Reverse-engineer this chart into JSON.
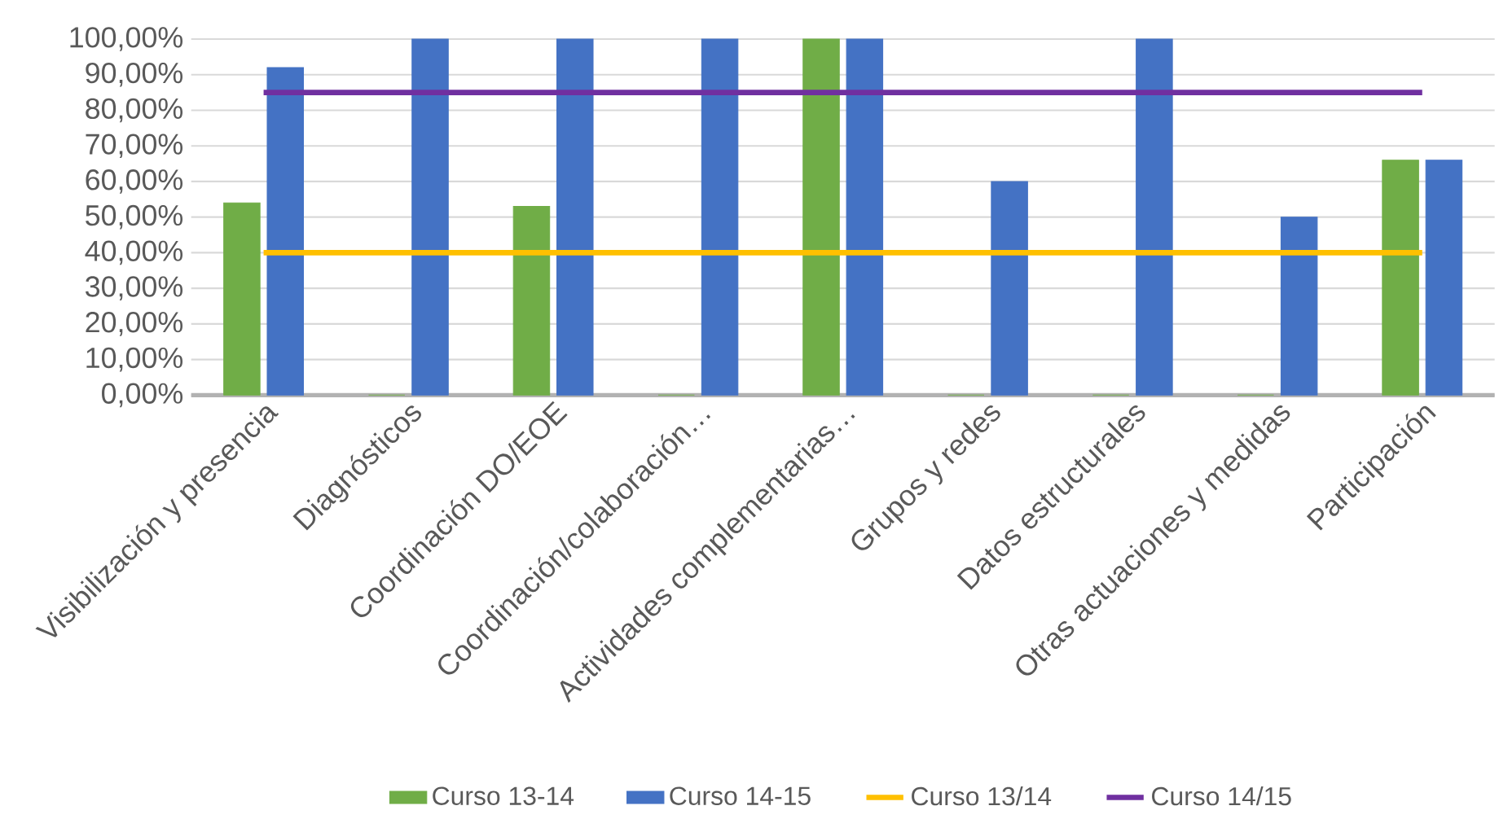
{
  "chart_data": {
    "type": "bar",
    "categories": [
      "Visibilización y presencia",
      "Diagnósticos",
      "Coordinación DO/EOE",
      "Coordinación/colaboración…",
      "Actividades complementarias…",
      "Grupos y redes",
      "Datos estructurales",
      "Otras actuaciones y medidas",
      "Participación"
    ],
    "series": [
      {
        "name": "Curso 13-14",
        "color": "#70ad47",
        "values": [
          54,
          0,
          53,
          0,
          100,
          0,
          0,
          0,
          66
        ]
      },
      {
        "name": "Curso 14-15",
        "color": "#4472c4",
        "values": [
          92,
          100,
          100,
          100,
          100,
          60,
          100,
          50,
          66
        ]
      },
      {
        "name": "Curso 13/14",
        "type": "line",
        "color": "#ffc000",
        "values": [
          40,
          40,
          40,
          40,
          40,
          40,
          40,
          40,
          40
        ]
      },
      {
        "name": "Curso 14/15",
        "type": "line",
        "color": "#7030a0",
        "values": [
          85,
          85,
          85,
          85,
          85,
          85,
          85,
          85,
          85
        ]
      }
    ],
    "ylim": [
      0,
      100
    ],
    "yticks": [
      {
        "value": 0,
        "label": "0,00%"
      },
      {
        "value": 10,
        "label": "10,00%"
      },
      {
        "value": 20,
        "label": "20,00%"
      },
      {
        "value": 30,
        "label": "30,00%"
      },
      {
        "value": 40,
        "label": "40,00%"
      },
      {
        "value": 50,
        "label": "50,00%"
      },
      {
        "value": 60,
        "label": "60,00%"
      },
      {
        "value": 70,
        "label": "70,00%"
      },
      {
        "value": 80,
        "label": "80,00%"
      },
      {
        "value": 90,
        "label": "90,00%"
      },
      {
        "value": 100,
        "label": "100,00%"
      }
    ],
    "grid": "y",
    "legend": "bottom"
  }
}
